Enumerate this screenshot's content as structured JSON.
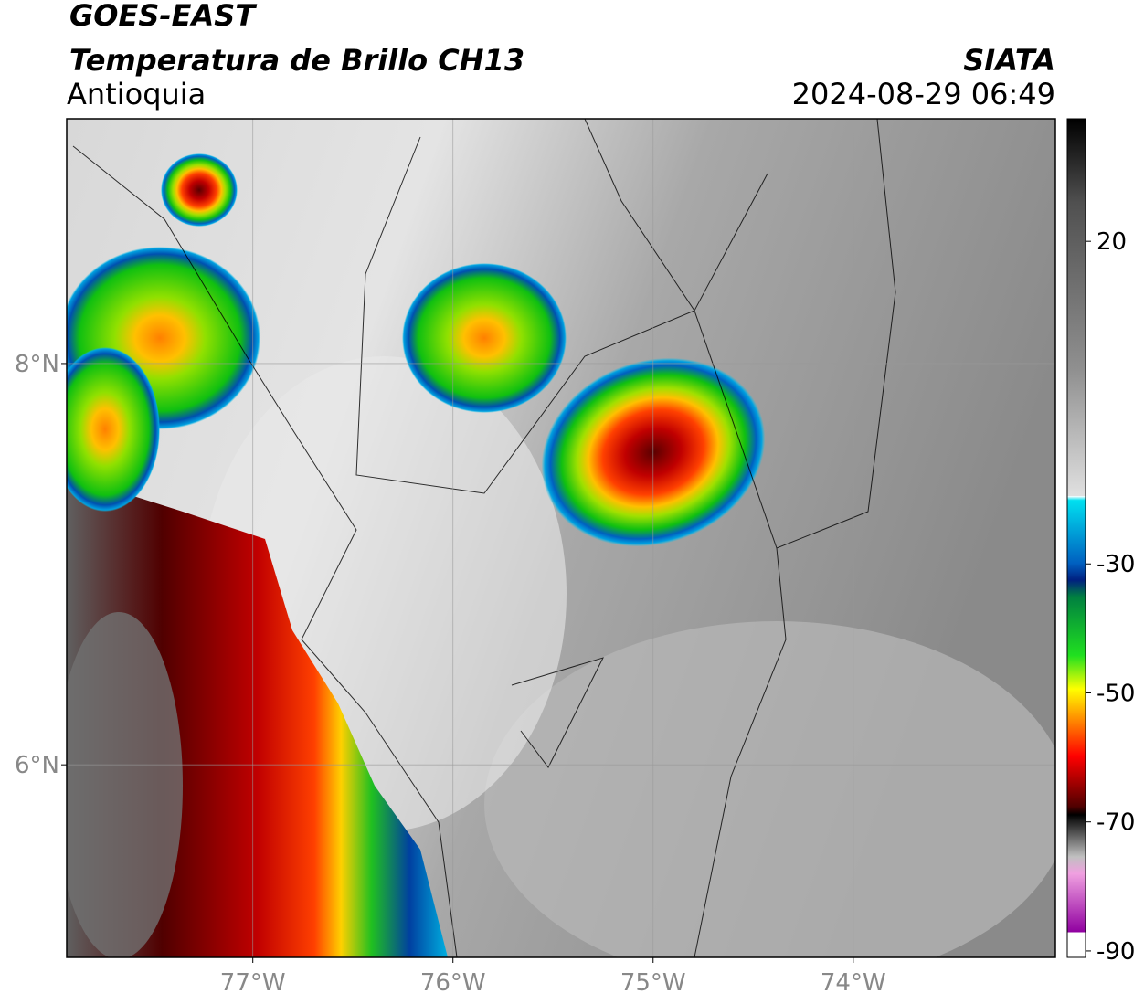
{
  "header": {
    "satellite": "GOES-EAST",
    "product": "Temperatura de Brillo CH13",
    "region": "Antioquia",
    "source": "SIATA",
    "datetime": "2024-08-29 06:49"
  },
  "map": {
    "type": "map",
    "xlim": [
      -77.93,
      -72.99
    ],
    "ylim": [
      5.04,
      9.22
    ],
    "xticks": [
      {
        "value": -77,
        "label": "77°W"
      },
      {
        "value": -76,
        "label": "76°W"
      },
      {
        "value": -75,
        "label": "75°W"
      },
      {
        "value": -74,
        "label": "74°W"
      }
    ],
    "yticks": [
      {
        "value": 8,
        "label": "8°N"
      },
      {
        "value": 6,
        "label": "6°N"
      }
    ],
    "grid": true
  },
  "colorbar": {
    "lim": [
      -91,
      39
    ],
    "ticks": [
      20,
      -30,
      -50,
      -70,
      -90
    ]
  }
}
